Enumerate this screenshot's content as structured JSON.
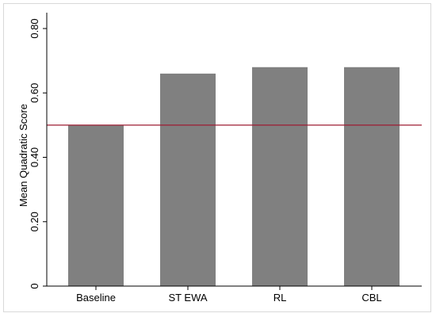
{
  "chart_data": {
    "type": "bar",
    "categories": [
      "Baseline",
      "ST EWA",
      "RL",
      "CBL"
    ],
    "values": [
      0.5,
      0.66,
      0.68,
      0.68
    ],
    "ylabel": "Mean Quadratic Score",
    "xlabel": "",
    "ylim": [
      0,
      0.8
    ],
    "yticks": [
      0,
      0.2,
      0.4,
      0.6,
      0.8
    ],
    "ytick_labels": [
      "0",
      "0.20",
      "0.40",
      "0.60",
      "0.80"
    ],
    "reference_line": 0.5,
    "bar_color": "#808080",
    "reference_line_color": "#9e1b32",
    "grid": false
  }
}
